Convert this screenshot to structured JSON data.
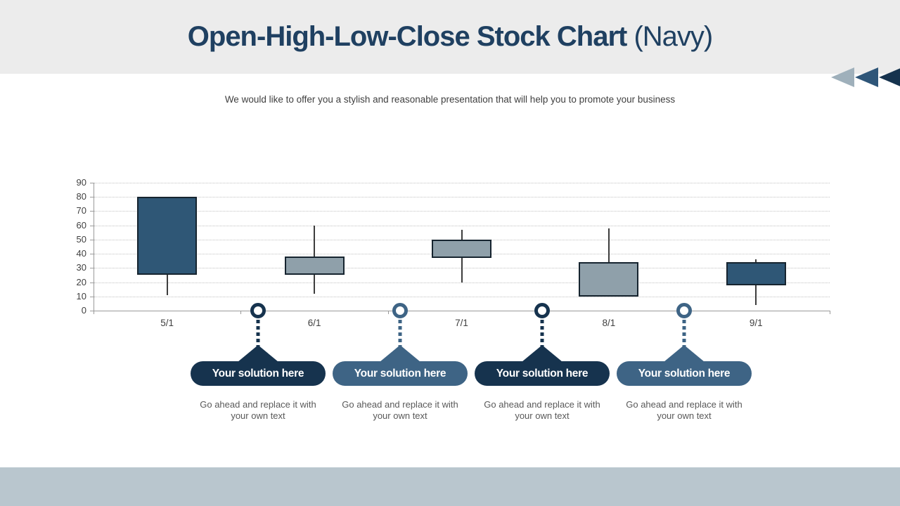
{
  "slide": {
    "title_bold": "Open-High-Low-Close Stock Chart",
    "title_light": " (Navy)",
    "subtitle": "We would like to offer you a stylish and reasonable presentation that will help you to promote your business"
  },
  "colors": {
    "header_bg": "#ececec",
    "title": "#1f4061",
    "footer_bg": "#b9c6ce",
    "dark_navy": "#16334e",
    "steel_blue": "#3e6485",
    "arrow_gray": "#9fb0bb",
    "arrow_mid_navy": "#2e5578",
    "axis": "#9a9a9a",
    "grid": "#c2c2c2",
    "wick": "#3d3d3d",
    "tick_text": "#3f3f3f",
    "desc_text": "#595959"
  },
  "nav_arrows": [
    "#9fb0bb",
    "#2e5578",
    "#16334e"
  ],
  "chart_data": {
    "type": "ohlc-candlestick",
    "title": "",
    "xlabel": "",
    "ylabel": "",
    "categories": [
      "5/1",
      "6/1",
      "7/1",
      "8/1",
      "9/1"
    ],
    "series": [
      {
        "date": "5/1",
        "open": 25,
        "high": 80,
        "low": 11,
        "close": 80,
        "direction": "up"
      },
      {
        "date": "6/1",
        "open": 38,
        "high": 60,
        "low": 12,
        "close": 25,
        "direction": "down"
      },
      {
        "date": "7/1",
        "open": 50,
        "high": 57,
        "low": 20,
        "close": 37,
        "direction": "down"
      },
      {
        "date": "8/1",
        "open": 34,
        "high": 58,
        "low": 10,
        "close": 10,
        "direction": "down"
      },
      {
        "date": "9/1",
        "open": 18,
        "high": 36,
        "low": 4,
        "close": 34,
        "direction": "up"
      }
    ],
    "ylim": [
      0,
      90
    ],
    "ytick_step": 10,
    "grid": true,
    "legend": false,
    "up_color": "#2f5776",
    "down_color": "#8fa0aa"
  },
  "callouts": [
    {
      "label": "Your solution here",
      "description": "Go ahead and replace it with your own text",
      "style": "dark"
    },
    {
      "label": "Your solution here",
      "description": "Go ahead and replace it with your own text",
      "style": "steel"
    },
    {
      "label": "Your solution here",
      "description": "Go ahead and replace it with your own text",
      "style": "dark"
    },
    {
      "label": "Your solution here",
      "description": "Go ahead and replace it with your own text",
      "style": "steel"
    }
  ]
}
